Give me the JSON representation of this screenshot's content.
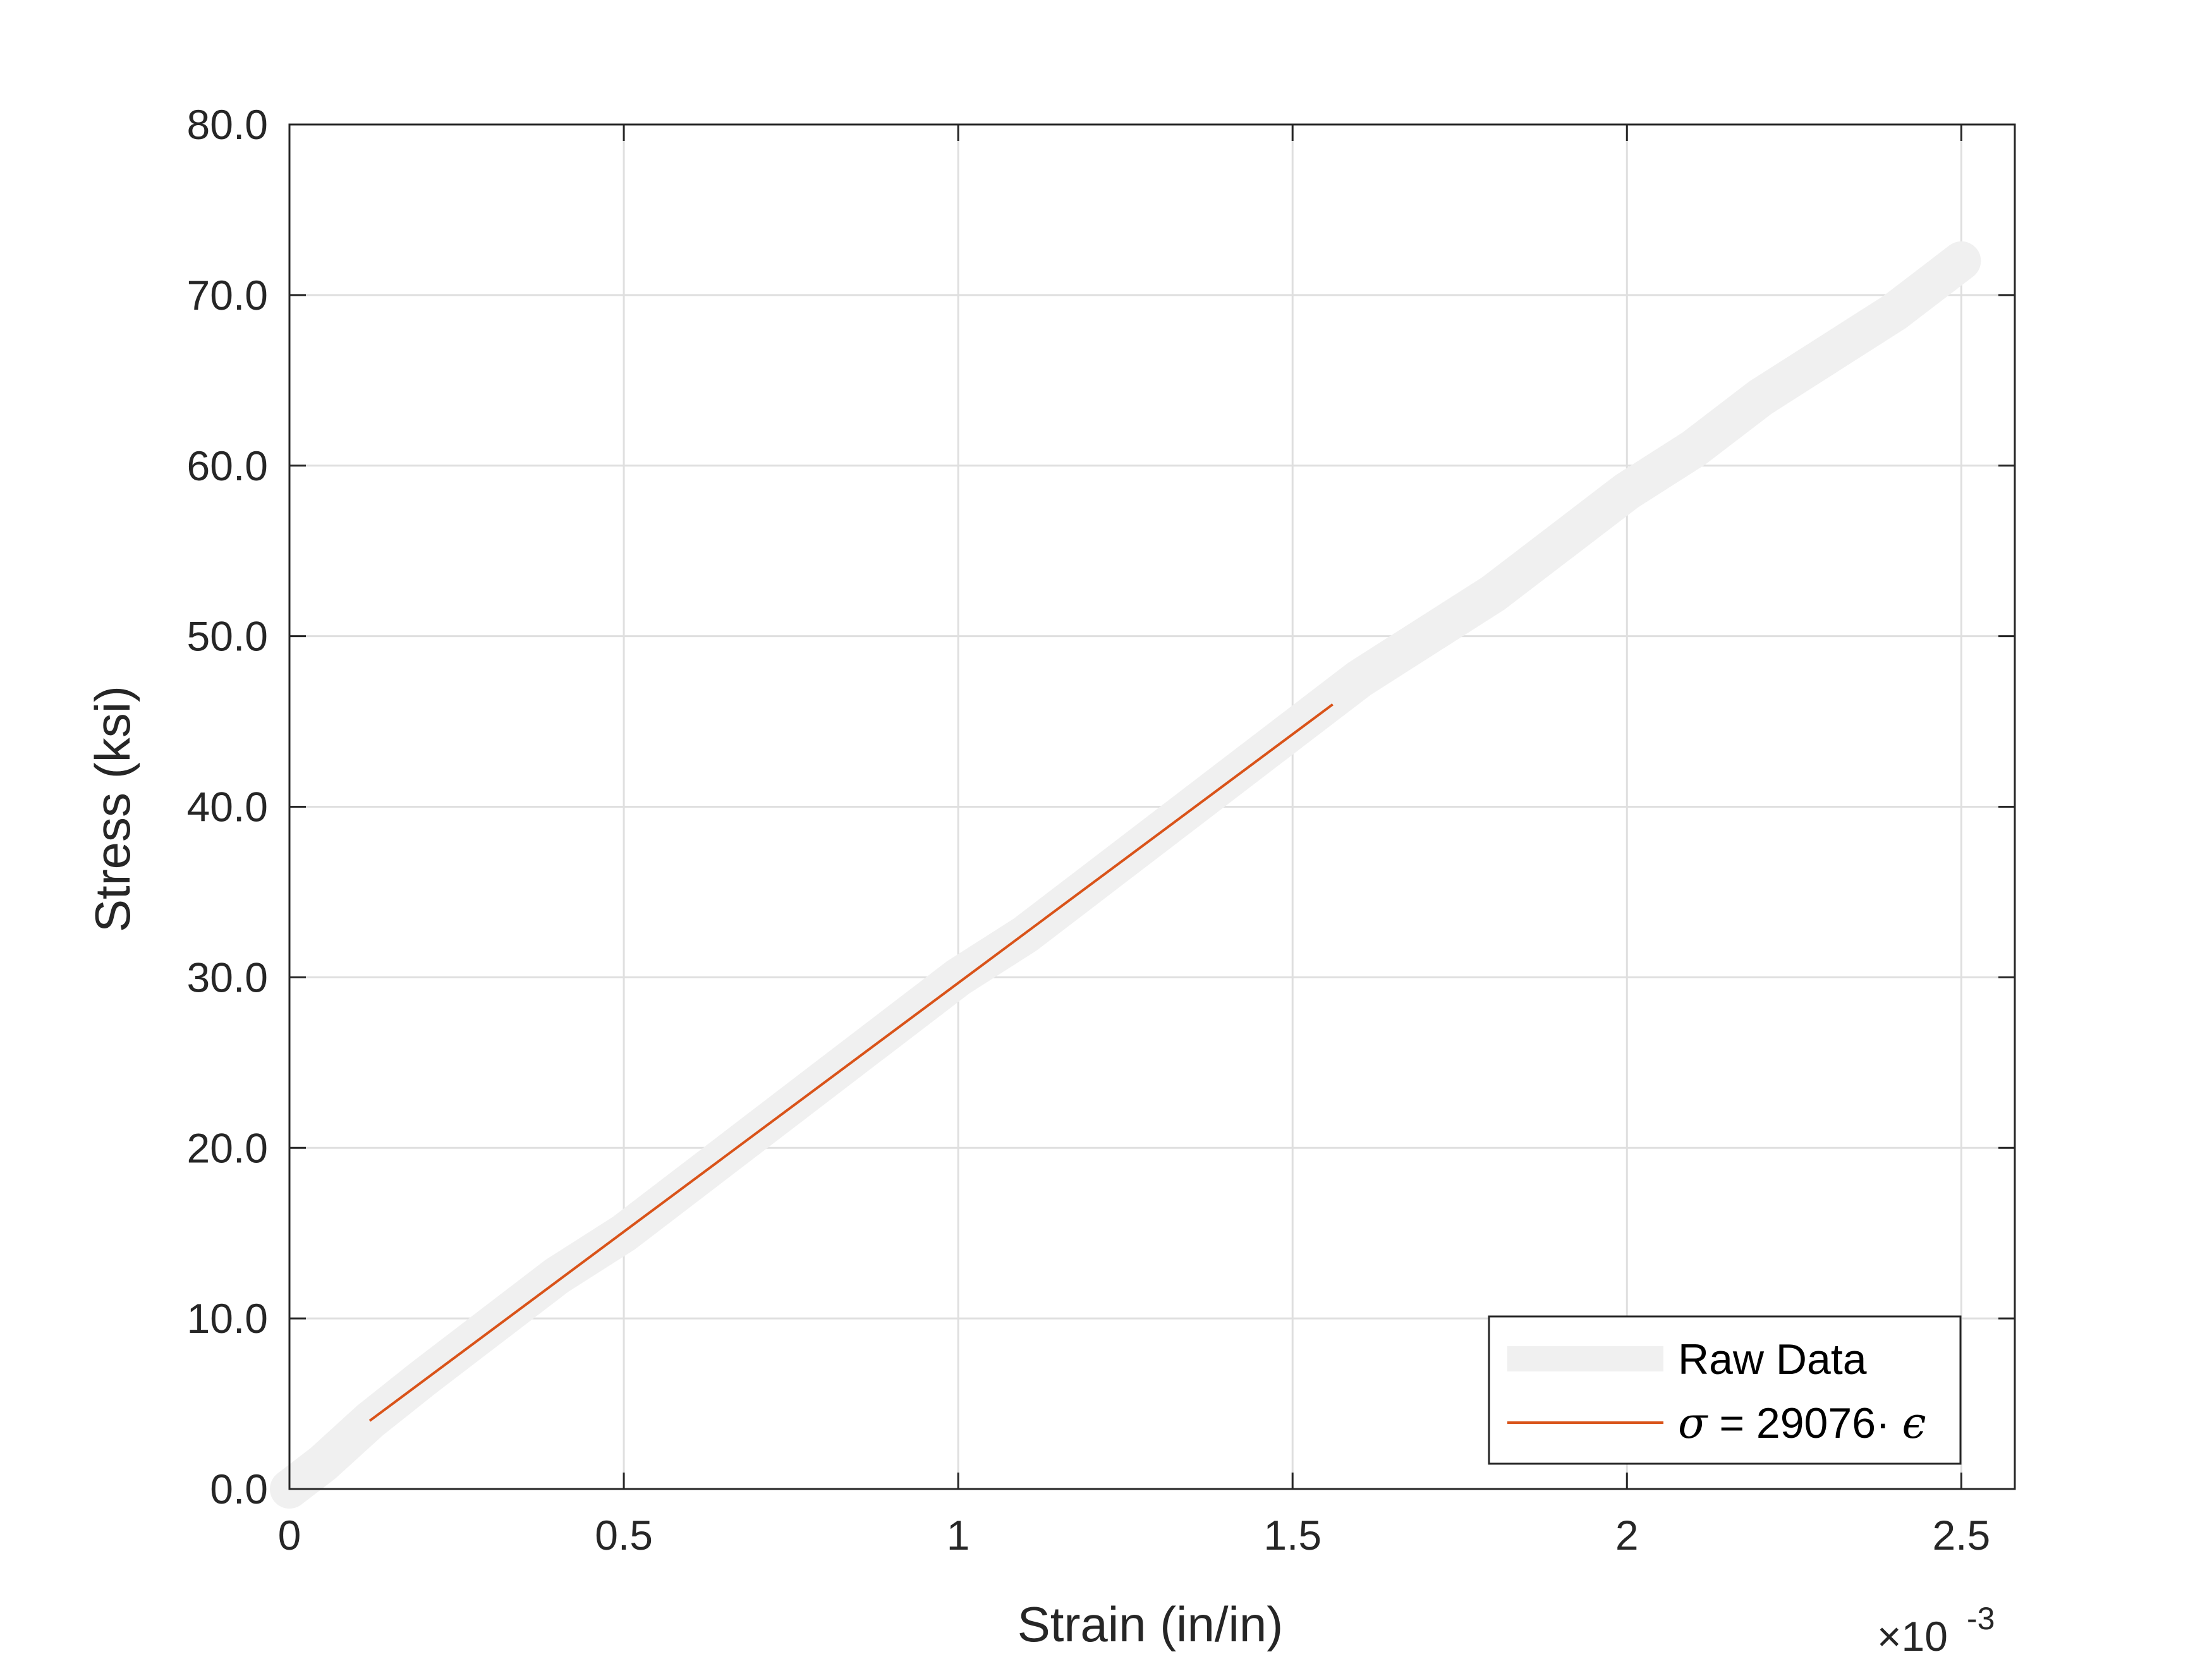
{
  "chart_data": {
    "type": "line",
    "title": "",
    "xlabel": "Strain (in/in)",
    "ylabel": "Stress (ksi)",
    "x_exponent_label": "×10",
    "x_exponent_power": "-3",
    "x_scale": 0.001,
    "xlim": [
      0,
      2.58
    ],
    "ylim": [
      0,
      80
    ],
    "x_ticks": [
      0,
      0.5,
      1,
      1.5,
      2,
      2.5
    ],
    "x_tick_labels": [
      "0",
      "0.5",
      "1",
      "1.5",
      "2",
      "2.5"
    ],
    "y_ticks": [
      0,
      10,
      20,
      30,
      40,
      50,
      60,
      70,
      80
    ],
    "y_tick_labels": [
      "0.0",
      "10.0",
      "20.0",
      "30.0",
      "40.0",
      "50.0",
      "60.0",
      "70.0",
      "80.0"
    ],
    "grid": true,
    "legend_position": "bottom-right",
    "series": [
      {
        "name": "Raw Data",
        "color": "#f0f0f0",
        "style": "thick-band",
        "x": [
          0.0,
          0.05,
          0.12,
          0.2,
          0.3,
          0.4,
          0.5,
          0.6,
          0.7,
          0.8,
          0.9,
          1.0,
          1.1,
          1.2,
          1.3,
          1.4,
          1.5,
          1.6,
          1.7,
          1.8,
          1.9,
          2.0,
          2.1,
          2.2,
          2.3,
          2.4,
          2.5
        ],
        "y": [
          0.0,
          1.5,
          4.0,
          6.5,
          9.5,
          12.5,
          15.0,
          18.0,
          21.0,
          24.0,
          27.0,
          30.0,
          32.5,
          35.5,
          38.5,
          41.5,
          44.5,
          47.5,
          50.0,
          52.5,
          55.5,
          58.5,
          61.0,
          64.0,
          66.5,
          69.0,
          72.0
        ]
      },
      {
        "name": "σ = 29076· ϵ",
        "name_sigma": "σ",
        "name_middle": " = 29076· ",
        "name_epsilon": "ϵ",
        "color": "#d95319",
        "style": "line",
        "x": [
          0.12,
          1.56
        ],
        "y": [
          4.0,
          46.0
        ]
      }
    ]
  }
}
